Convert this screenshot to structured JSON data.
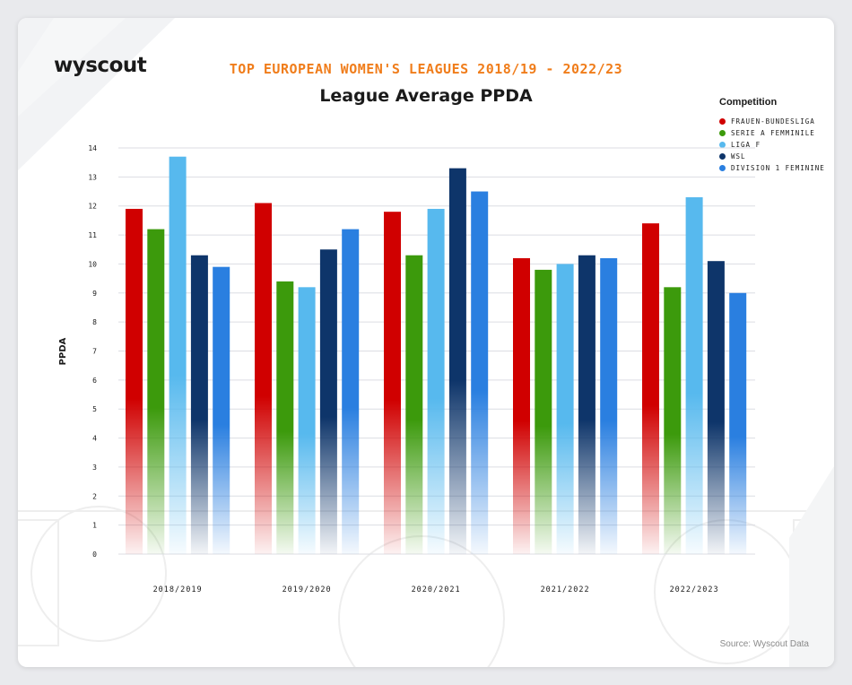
{
  "brand": {
    "logo": "wyscout"
  },
  "source": "Source: Wyscout Data",
  "chart_data": {
    "type": "bar",
    "supertitle": "TOP EUROPEAN WOMEN'S LEAGUES 2018/19 - 2022/23",
    "title": "League Average PPDA",
    "xlabel": "",
    "ylabel": "PPDA",
    "ylim": [
      0,
      14
    ],
    "yticks": [
      0,
      1,
      2,
      3,
      4,
      5,
      6,
      7,
      8,
      9,
      10,
      11,
      12,
      13,
      14
    ],
    "grid": true,
    "legend_title": "Competition",
    "legend_position": "top-right",
    "categories": [
      "2018/2019",
      "2019/2020",
      "2020/2021",
      "2021/2022",
      "2022/2023"
    ],
    "series": [
      {
        "name": "FRAUEN-BUNDESLIGA",
        "color": "#d00000",
        "values": [
          11.9,
          12.1,
          11.8,
          10.2,
          11.4
        ]
      },
      {
        "name": "SERIE A FEMMINILE",
        "color": "#3c9a0c",
        "values": [
          11.2,
          9.4,
          10.3,
          9.8,
          9.2
        ]
      },
      {
        "name": "LIGA F",
        "color": "#57b9ee",
        "values": [
          13.7,
          9.2,
          11.9,
          10.0,
          12.3
        ]
      },
      {
        "name": "WSL",
        "color": "#0e356a",
        "values": [
          10.3,
          10.5,
          13.3,
          10.3,
          10.1
        ]
      },
      {
        "name": "DIVISION 1 FEMININE",
        "color": "#2a7fe0",
        "values": [
          9.9,
          11.2,
          12.5,
          10.2,
          9.0
        ]
      }
    ]
  }
}
